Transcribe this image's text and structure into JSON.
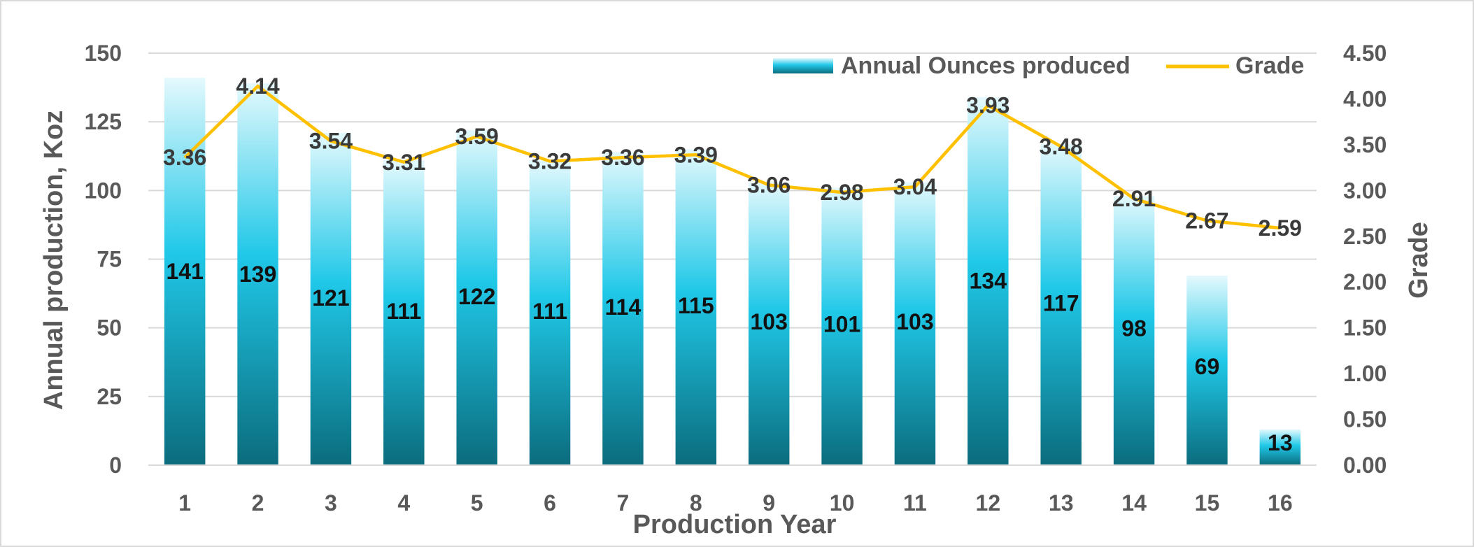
{
  "chart_data": {
    "type": "bar",
    "categories": [
      "1",
      "2",
      "3",
      "4",
      "5",
      "6",
      "7",
      "8",
      "9",
      "10",
      "11",
      "12",
      "13",
      "14",
      "15",
      "16"
    ],
    "series": [
      {
        "name": "Annual Ounces produced",
        "type": "bar",
        "axis": "left",
        "values": [
          141,
          139,
          121,
          111,
          122,
          111,
          114,
          115,
          103,
          101,
          103,
          134,
          117,
          98,
          69,
          13
        ]
      },
      {
        "name": "Grade",
        "type": "line",
        "axis": "right",
        "values": [
          3.36,
          4.14,
          3.54,
          3.31,
          3.59,
          3.32,
          3.36,
          3.39,
          3.06,
          2.98,
          3.04,
          3.93,
          3.48,
          2.91,
          2.67,
          2.59
        ]
      }
    ],
    "xlabel": "Production Year",
    "ylabel": "Annual production, Koz",
    "y2label": "Grade",
    "ylim": [
      0,
      150
    ],
    "y2lim": [
      0,
      4.5
    ],
    "yticks": [
      "0",
      "25",
      "50",
      "75",
      "100",
      "125",
      "150"
    ],
    "y2ticks": [
      "0.00",
      "0.50",
      "1.00",
      "1.50",
      "2.00",
      "2.50",
      "3.00",
      "3.50",
      "4.00",
      "4.50"
    ],
    "grid": true,
    "legend_position": "top-right",
    "colors": {
      "bar_top": "#d4f4fb",
      "bar_mid": "#1ec8e8",
      "bar_bottom": "#0a6f80",
      "line": "#ffc000",
      "grid": "#d9d9d9"
    }
  }
}
